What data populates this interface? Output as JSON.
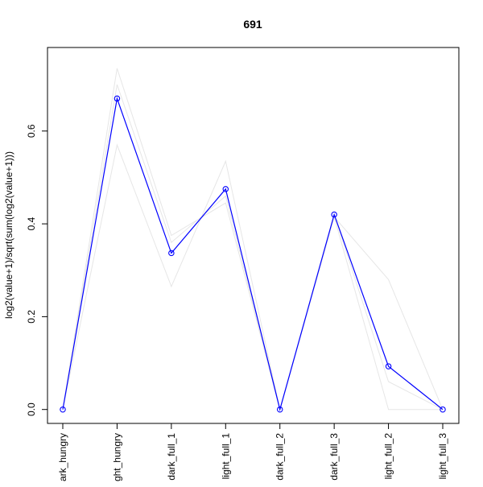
{
  "chart_data": {
    "type": "line",
    "title": "691",
    "xlabel": "",
    "ylabel": "log2(value+1)/sqrt(sum(log2(value+1)))",
    "categories": [
      "dark_hungry",
      "light_hungry",
      "dark_full_1",
      "light_full_1",
      "dark_full_2",
      "dark_full_3",
      "light_full_2",
      "light_full_3"
    ],
    "category_labels": [
      "ark_hungry",
      "ght_hungry",
      "dark_full_1",
      "light_full_1",
      "dark_full_2",
      "dark_full_3",
      "light_full_2",
      "light_full_3"
    ],
    "ylim": [
      -0.03,
      0.78
    ],
    "yticks": [
      0.0,
      0.2,
      0.4,
      0.6
    ],
    "ytick_labels": [
      "0.0",
      "0.2",
      "0.4",
      "0.6"
    ],
    "grid": false,
    "series": [
      {
        "values": [
          0.0,
          0.735,
          0.375,
          0.445,
          0.0,
          0.415,
          0.28,
          0.0
        ],
        "color": "#e6e6e6",
        "role": "background"
      },
      {
        "values": [
          0.0,
          0.57,
          0.265,
          0.535,
          0.0,
          0.415,
          0.0,
          0.0
        ],
        "color": "#e6e6e6",
        "role": "background"
      },
      {
        "values": [
          0.0,
          0.7,
          0.36,
          0.46,
          0.0,
          0.42,
          0.06,
          0.0
        ],
        "color": "#e6e6e6",
        "role": "background"
      },
      {
        "values": [
          0.0,
          0.67,
          0.337,
          0.475,
          0.0,
          0.42,
          0.093,
          0.0
        ],
        "color": "#0000ff",
        "role": "highlight",
        "markers": true
      }
    ]
  }
}
